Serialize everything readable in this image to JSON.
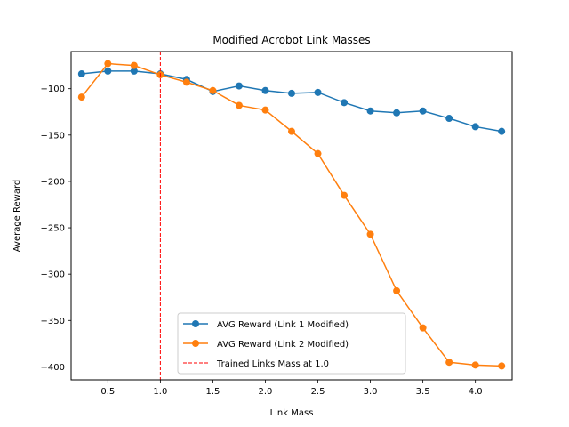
{
  "chart_data": {
    "type": "line",
    "title": "Modified Acrobot Link Masses",
    "xlabel": "Link Mass",
    "ylabel": "Average Reward",
    "xlim": [
      0.15,
      4.35
    ],
    "ylim": [
      -414,
      -60
    ],
    "x_ticks": [
      0.5,
      1.0,
      1.5,
      2.0,
      2.5,
      3.0,
      3.5,
      4.0
    ],
    "x_tick_labels": [
      "0.5",
      "1.0",
      "1.5",
      "2.0",
      "2.5",
      "3.0",
      "3.5",
      "4.0"
    ],
    "y_ticks": [
      -100,
      -150,
      -200,
      -250,
      -300,
      -350,
      -400
    ],
    "y_tick_labels": [
      "−100",
      "−150",
      "−200",
      "−250",
      "−300",
      "−350",
      "−400"
    ],
    "x": [
      0.25,
      0.5,
      0.75,
      1.0,
      1.25,
      1.5,
      1.75,
      2.0,
      2.25,
      2.5,
      2.75,
      3.0,
      3.25,
      3.5,
      3.75,
      4.0,
      4.25
    ],
    "series": [
      {
        "name": "AVG Reward (Link 1 Modified)",
        "color": "#1f77b4",
        "marker": "circle",
        "values": [
          -84,
          -81,
          -81,
          -84,
          -90,
          -103,
          -97,
          -102,
          -105,
          -104,
          -115,
          -124,
          -126,
          -124,
          -132,
          -141,
          -146
        ]
      },
      {
        "name": "AVG Reward (Link 2 Modified)",
        "color": "#ff7f0e",
        "marker": "circle",
        "values": [
          -109,
          -73,
          -75,
          -85,
          -93,
          -102,
          -118,
          -123,
          -146,
          -170,
          -215,
          -257,
          -318,
          -358,
          -395,
          -398,
          -399
        ]
      }
    ],
    "vline": {
      "x": 1.0,
      "color": "#ff0000",
      "style": "dashed",
      "label": "Trained Links Mass at 1.0"
    },
    "legend": {
      "placement": "lower-center"
    },
    "grid": false
  }
}
